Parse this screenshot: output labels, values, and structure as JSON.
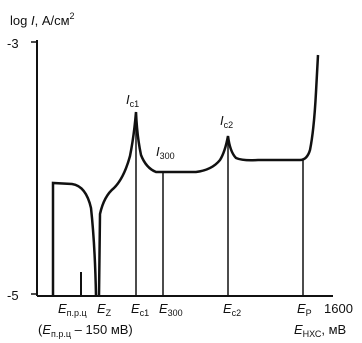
{
  "figure": {
    "y_axis": {
      "label_main": "log ",
      "label_var": "I",
      "label_unit": ", А/см",
      "label_sup": "2",
      "top_tick": "-3",
      "bottom_tick": "-5"
    },
    "x_axis": {
      "end_value": "1600",
      "label_var": "E",
      "label_sub": "НХС",
      "label_unit": ", мВ"
    },
    "potentials": [
      {
        "name": "E",
        "sub": "п.р.ц"
      },
      {
        "name": "E",
        "sub": "Z"
      },
      {
        "name": "E",
        "sub": "c1"
      },
      {
        "name": "E",
        "sub": "300"
      },
      {
        "name": "E",
        "sub": "c2"
      },
      {
        "name": "E",
        "sub": "P"
      }
    ],
    "note": {
      "open": "(",
      "name": "E",
      "sub": "п.р.ц",
      "rest": " – 150 мВ)"
    },
    "currents": [
      {
        "name": "I",
        "sub": "c1"
      },
      {
        "name": "I",
        "sub": "300"
      },
      {
        "name": "I",
        "sub": "c2"
      }
    ],
    "colors": {
      "ink": "#111111",
      "background": "#ffffff"
    }
  }
}
